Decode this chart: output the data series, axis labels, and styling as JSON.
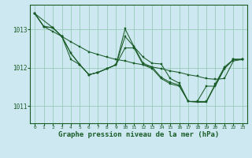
{
  "bg_color": "#cde8f0",
  "grid_color": "#99ccbb",
  "line_color": "#1a5c28",
  "xlabel": "Graphe pression niveau de la mer (hPa)",
  "xlabel_fontsize": 6.5,
  "yticks": [
    1011,
    1012,
    1013
  ],
  "xticks": [
    0,
    1,
    2,
    3,
    4,
    5,
    6,
    7,
    8,
    9,
    10,
    11,
    12,
    13,
    14,
    15,
    16,
    17,
    18,
    19,
    20,
    21,
    22,
    23
  ],
  "xlim": [
    -0.5,
    23.5
  ],
  "ylim": [
    1010.55,
    1013.65
  ],
  "series": {
    "line1": {
      "x": [
        0,
        1,
        2,
        3,
        4,
        5,
        6,
        7,
        8,
        9,
        10,
        11,
        12,
        13,
        14,
        15,
        16,
        17,
        18,
        19,
        20,
        21,
        22,
        23
      ],
      "y": [
        1013.42,
        1013.08,
        1012.95,
        1012.82,
        1012.68,
        1012.55,
        1012.42,
        1012.35,
        1012.28,
        1012.22,
        1012.18,
        1012.12,
        1012.08,
        1012.02,
        1011.98,
        1011.92,
        1011.88,
        1011.82,
        1011.78,
        1011.72,
        1011.7,
        1011.72,
        1012.18,
        1012.22
      ]
    },
    "line2": {
      "x": [
        0,
        1,
        2,
        3,
        4,
        5,
        6,
        7,
        8,
        9,
        10,
        11,
        12,
        13,
        14,
        15,
        16,
        17,
        18,
        19,
        20,
        21,
        22,
        23
      ],
      "y": [
        1013.42,
        1013.08,
        1013.05,
        1012.82,
        1012.38,
        1012.08,
        1011.82,
        1011.88,
        1011.98,
        1012.08,
        1013.02,
        1012.55,
        1012.28,
        1012.12,
        1012.1,
        1011.72,
        1011.6,
        1011.12,
        1011.12,
        1011.12,
        1011.58,
        1012.02,
        1012.22,
        1012.22
      ]
    },
    "line3": {
      "x": [
        0,
        1,
        2,
        3,
        4,
        5,
        6,
        7,
        8,
        9,
        10,
        11,
        12,
        13,
        14,
        15,
        16,
        17,
        18,
        19,
        20,
        21,
        22,
        23
      ],
      "y": [
        1013.42,
        1013.08,
        1013.05,
        1012.82,
        1012.38,
        1012.08,
        1011.82,
        1011.88,
        1011.98,
        1012.08,
        1012.82,
        1012.55,
        1012.12,
        1012.02,
        1011.75,
        1011.62,
        1011.55,
        1011.12,
        1011.12,
        1011.52,
        1011.52,
        1011.98,
        1012.22,
        1012.22
      ]
    },
    "line4": {
      "x": [
        0,
        2,
        3,
        4,
        5,
        6,
        7,
        8,
        9,
        10,
        11,
        12,
        13,
        14,
        15,
        16,
        17,
        18,
        19,
        20,
        21,
        22,
        23
      ],
      "y": [
        1013.42,
        1013.05,
        1012.82,
        1012.22,
        1012.08,
        1011.82,
        1011.88,
        1011.98,
        1012.08,
        1012.52,
        1012.52,
        1012.08,
        1011.98,
        1011.72,
        1011.58,
        1011.52,
        1011.12,
        1011.1,
        1011.1,
        1011.55,
        1011.98,
        1012.22,
        1012.22
      ]
    }
  }
}
